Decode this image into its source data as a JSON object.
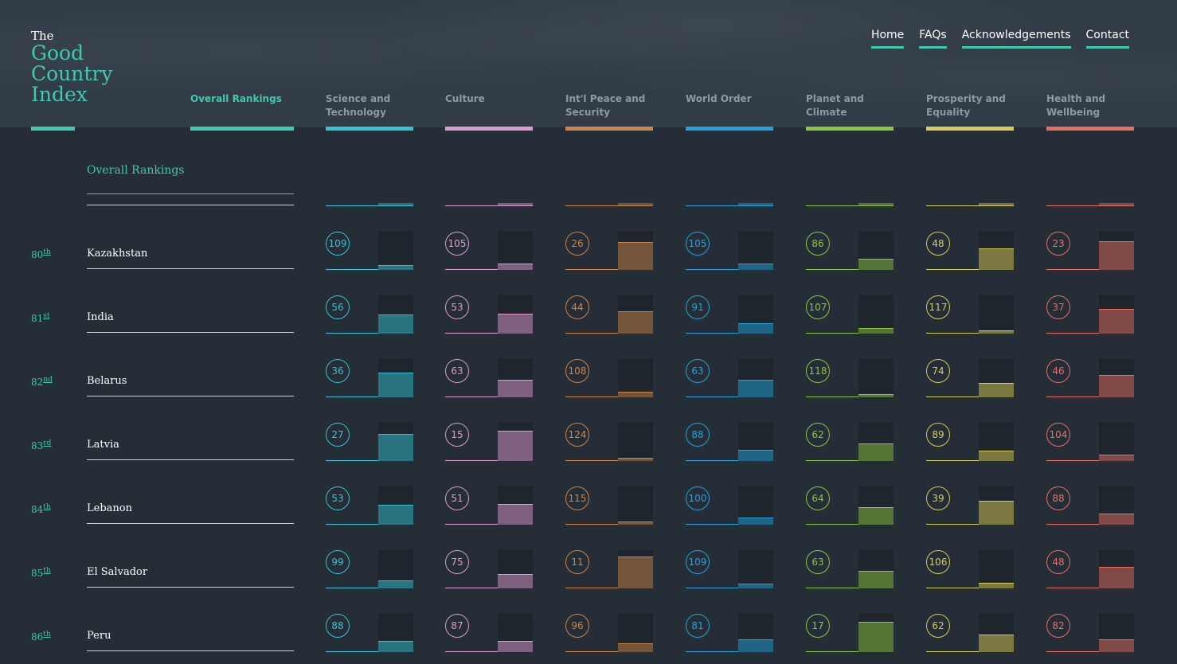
{
  "logo": {
    "the": "The",
    "main": "Good Country Index"
  },
  "nav": [
    "Home",
    "FAQs",
    "Acknowledgements",
    "Contact"
  ],
  "categories": [
    {
      "label": "Overall Rankings",
      "color": "#3ec9b1",
      "active": true
    },
    {
      "label": "Science and Technology",
      "color": "#33c3d6"
    },
    {
      "label": "Culture",
      "color": "#e09ad2"
    },
    {
      "label": "Int'l Peace and Security",
      "color": "#cc8545"
    },
    {
      "label": "World Order",
      "color": "#1ea5e0"
    },
    {
      "label": "Planet and Climate",
      "color": "#8cc63f"
    },
    {
      "label": "Prosperity and Equality",
      "color": "#d8cc56"
    },
    {
      "label": "Health and Wellbeing",
      "color": "#e66f62"
    }
  ],
  "section_title": "Overall Rankings",
  "rows": [
    {
      "rank": "80",
      "suffix": "th",
      "country": "Kazakhstan",
      "scores": [
        109,
        105,
        26,
        105,
        86,
        48,
        23
      ]
    },
    {
      "rank": "81",
      "suffix": "st",
      "country": "India",
      "scores": [
        56,
        53,
        44,
        91,
        107,
        117,
        37
      ]
    },
    {
      "rank": "82",
      "suffix": "nd",
      "country": "Belarus",
      "scores": [
        36,
        63,
        108,
        63,
        118,
        74,
        46
      ]
    },
    {
      "rank": "83",
      "suffix": "rd",
      "country": "Latvia",
      "scores": [
        27,
        15,
        124,
        88,
        62,
        89,
        104
      ]
    },
    {
      "rank": "84",
      "suffix": "th",
      "country": "Lebanon",
      "scores": [
        53,
        51,
        115,
        100,
        64,
        39,
        88
      ]
    },
    {
      "rank": "85",
      "suffix": "th",
      "country": "El Salvador",
      "scores": [
        99,
        75,
        11,
        109,
        63,
        106,
        48
      ]
    },
    {
      "rank": "86",
      "suffix": "th",
      "country": "Peru",
      "scores": [
        88,
        87,
        96,
        81,
        17,
        62,
        82
      ]
    }
  ]
}
